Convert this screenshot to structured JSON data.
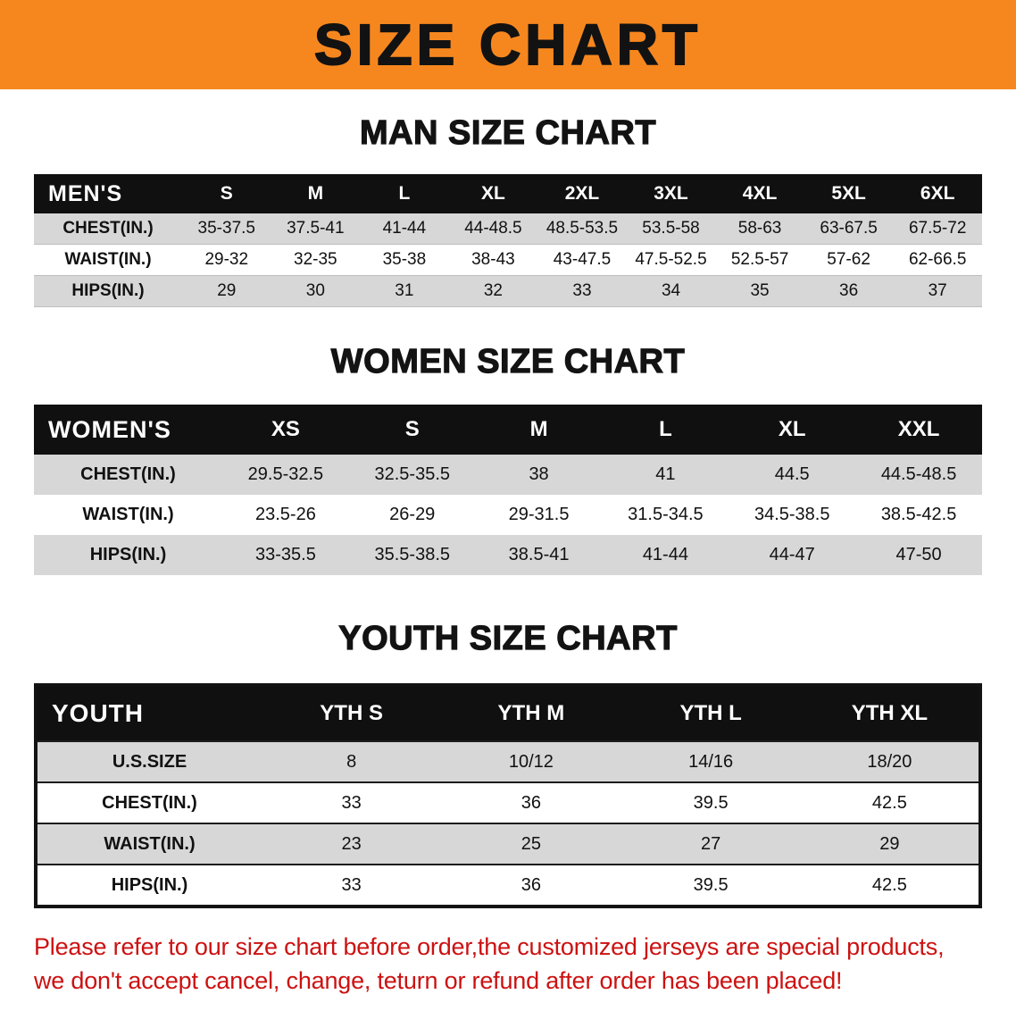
{
  "banner": {
    "title": "SIZE CHART",
    "bg_color": "#f6871f"
  },
  "sections": [
    {
      "id": "men",
      "heading": "MAN SIZE CHART",
      "corner": "MEN'S",
      "columns": [
        "S",
        "M",
        "L",
        "XL",
        "2XL",
        "3XL",
        "4XL",
        "5XL",
        "6XL"
      ],
      "rows": [
        {
          "label": "CHEST(IN.)",
          "values": [
            "35-37.5",
            "37.5-41",
            "41-44",
            "44-48.5",
            "48.5-53.5",
            "53.5-58",
            "58-63",
            "63-67.5",
            "67.5-72"
          ]
        },
        {
          "label": "WAIST(IN.)",
          "values": [
            "29-32",
            "32-35",
            "35-38",
            "38-43",
            "43-47.5",
            "47.5-52.5",
            "52.5-57",
            "57-62",
            "62-66.5"
          ]
        },
        {
          "label": "HIPS(IN.)",
          "values": [
            "29",
            "30",
            "31",
            "32",
            "33",
            "34",
            "35",
            "36",
            "37"
          ]
        }
      ]
    },
    {
      "id": "women",
      "heading": "WOMEN SIZE CHART",
      "corner": "WOMEN'S",
      "columns": [
        "XS",
        "S",
        "M",
        "L",
        "XL",
        "XXL"
      ],
      "rows": [
        {
          "label": "CHEST(IN.)",
          "values": [
            "29.5-32.5",
            "32.5-35.5",
            "38",
            "41",
            "44.5",
            "44.5-48.5"
          ]
        },
        {
          "label": "WAIST(IN.)",
          "values": [
            "23.5-26",
            "26-29",
            "29-31.5",
            "31.5-34.5",
            "34.5-38.5",
            "38.5-42.5"
          ]
        },
        {
          "label": "HIPS(IN.)",
          "values": [
            "33-35.5",
            "35.5-38.5",
            "38.5-41",
            "41-44",
            "44-47",
            "47-50"
          ]
        }
      ]
    },
    {
      "id": "youth",
      "heading": "YOUTH SIZE CHART",
      "corner": "YOUTH",
      "columns": [
        "YTH S",
        "YTH M",
        "YTH L",
        "YTH XL"
      ],
      "rows": [
        {
          "label": "U.S.SIZE",
          "values": [
            "8",
            "10/12",
            "14/16",
            "18/20"
          ]
        },
        {
          "label": "CHEST(IN.)",
          "values": [
            "33",
            "36",
            "39.5",
            "42.5"
          ]
        },
        {
          "label": "WAIST(IN.)",
          "values": [
            "23",
            "25",
            "27",
            "29"
          ]
        },
        {
          "label": "HIPS(IN.)",
          "values": [
            "33",
            "36",
            "39.5",
            "42.5"
          ]
        }
      ]
    }
  ],
  "footer": {
    "line1": "Please refer to our size chart before order,the customized jerseys are special products,",
    "line2": "we don't accept cancel, change, teturn or refund after order has been placed!",
    "text_color": "#cc1111"
  }
}
